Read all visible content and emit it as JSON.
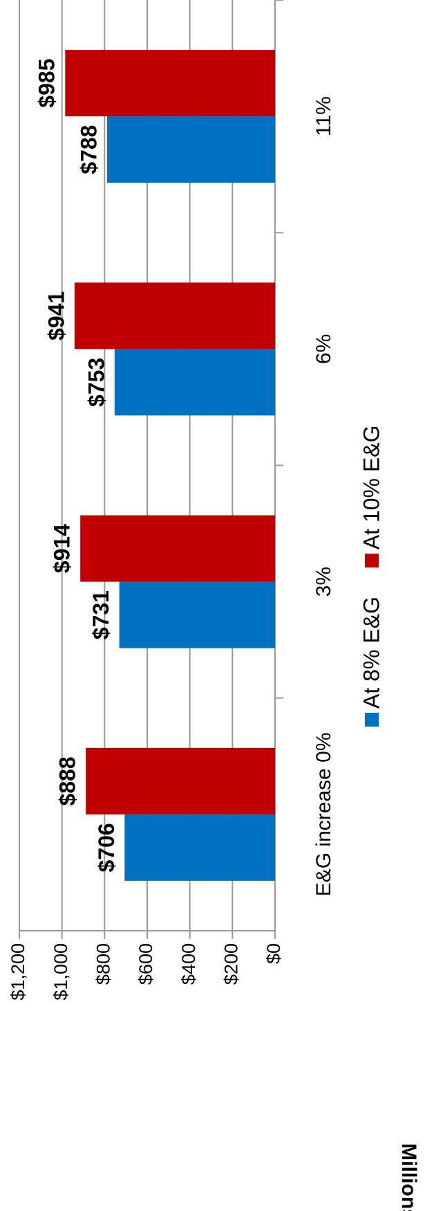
{
  "chart_data": {
    "type": "bar",
    "categories": [
      "E&G increase 0%",
      "3%",
      "6%",
      "11%"
    ],
    "series": [
      {
        "name": "At 8% E&G",
        "color": "#0070c0",
        "values": [
          706,
          731,
          753,
          788
        ],
        "value_labels": [
          "$706",
          "$731",
          "$753",
          "$788"
        ]
      },
      {
        "name": "At 10% E&G",
        "color": "#c00000",
        "values": [
          888,
          914,
          941,
          985
        ],
        "value_labels": [
          "$888",
          "$914",
          "$941",
          "$985"
        ]
      }
    ],
    "y_label": "Millions",
    "ylim": [
      0,
      1200
    ],
    "yticks": [
      {
        "value": 0,
        "label": "$0"
      },
      {
        "value": 200,
        "label": "$200"
      },
      {
        "value": 400,
        "label": "$400"
      },
      {
        "value": 600,
        "label": "$600"
      },
      {
        "value": 800,
        "label": "$800"
      },
      {
        "value": 1000,
        "label": "$1,000"
      },
      {
        "value": 1200,
        "label": "$1,200"
      }
    ],
    "grid": true,
    "legend": "bottom"
  }
}
